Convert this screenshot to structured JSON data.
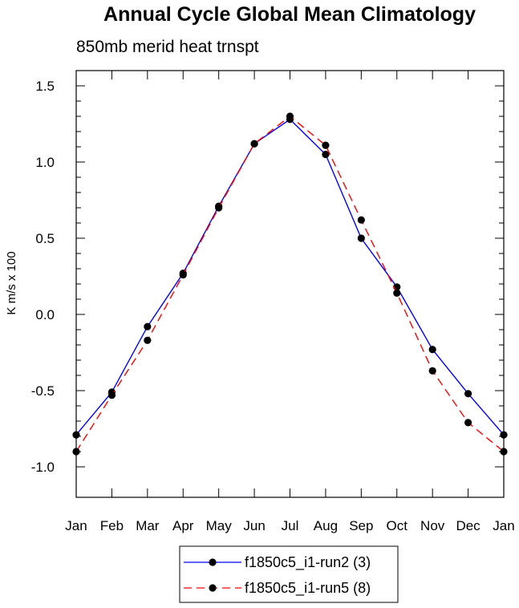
{
  "chart_data": {
    "type": "line",
    "title": "Annual Cycle Global Mean Climatology",
    "subtitle": "850mb merid heat trnspt",
    "ylabel": "K m/s x 100",
    "xlabel": "",
    "categories": [
      "Jan",
      "Feb",
      "Mar",
      "Apr",
      "May",
      "Jun",
      "Jul",
      "Aug",
      "Sep",
      "Oct",
      "Nov",
      "Dec",
      "Jan"
    ],
    "ylim": [
      -1.2,
      1.6
    ],
    "yticks": [
      -1.0,
      -0.5,
      0.0,
      0.5,
      1.0,
      1.5
    ],
    "ytick_labels": [
      "-1.0",
      "-0.5",
      "0.0",
      "0.5",
      "1.0",
      "1.5"
    ],
    "grid": false,
    "legend_position": "bottom-center",
    "series": [
      {
        "name": "f1850c5_i1-run2 (3)",
        "color": "#0000ff",
        "line_style": "solid",
        "marker": "filled-circle",
        "values": [
          -0.79,
          -0.51,
          -0.08,
          0.27,
          0.71,
          1.12,
          1.28,
          1.05,
          0.5,
          0.18,
          -0.23,
          -0.52,
          -0.79
        ]
      },
      {
        "name": "f1850c5_i1-run5 (8)",
        "color": "#ff0000",
        "line_style": "dashed",
        "marker": "filled-circle",
        "values": [
          -0.9,
          -0.53,
          -0.17,
          0.26,
          0.7,
          1.12,
          1.3,
          1.11,
          0.62,
          0.14,
          -0.37,
          -0.71,
          -0.9
        ]
      }
    ]
  }
}
